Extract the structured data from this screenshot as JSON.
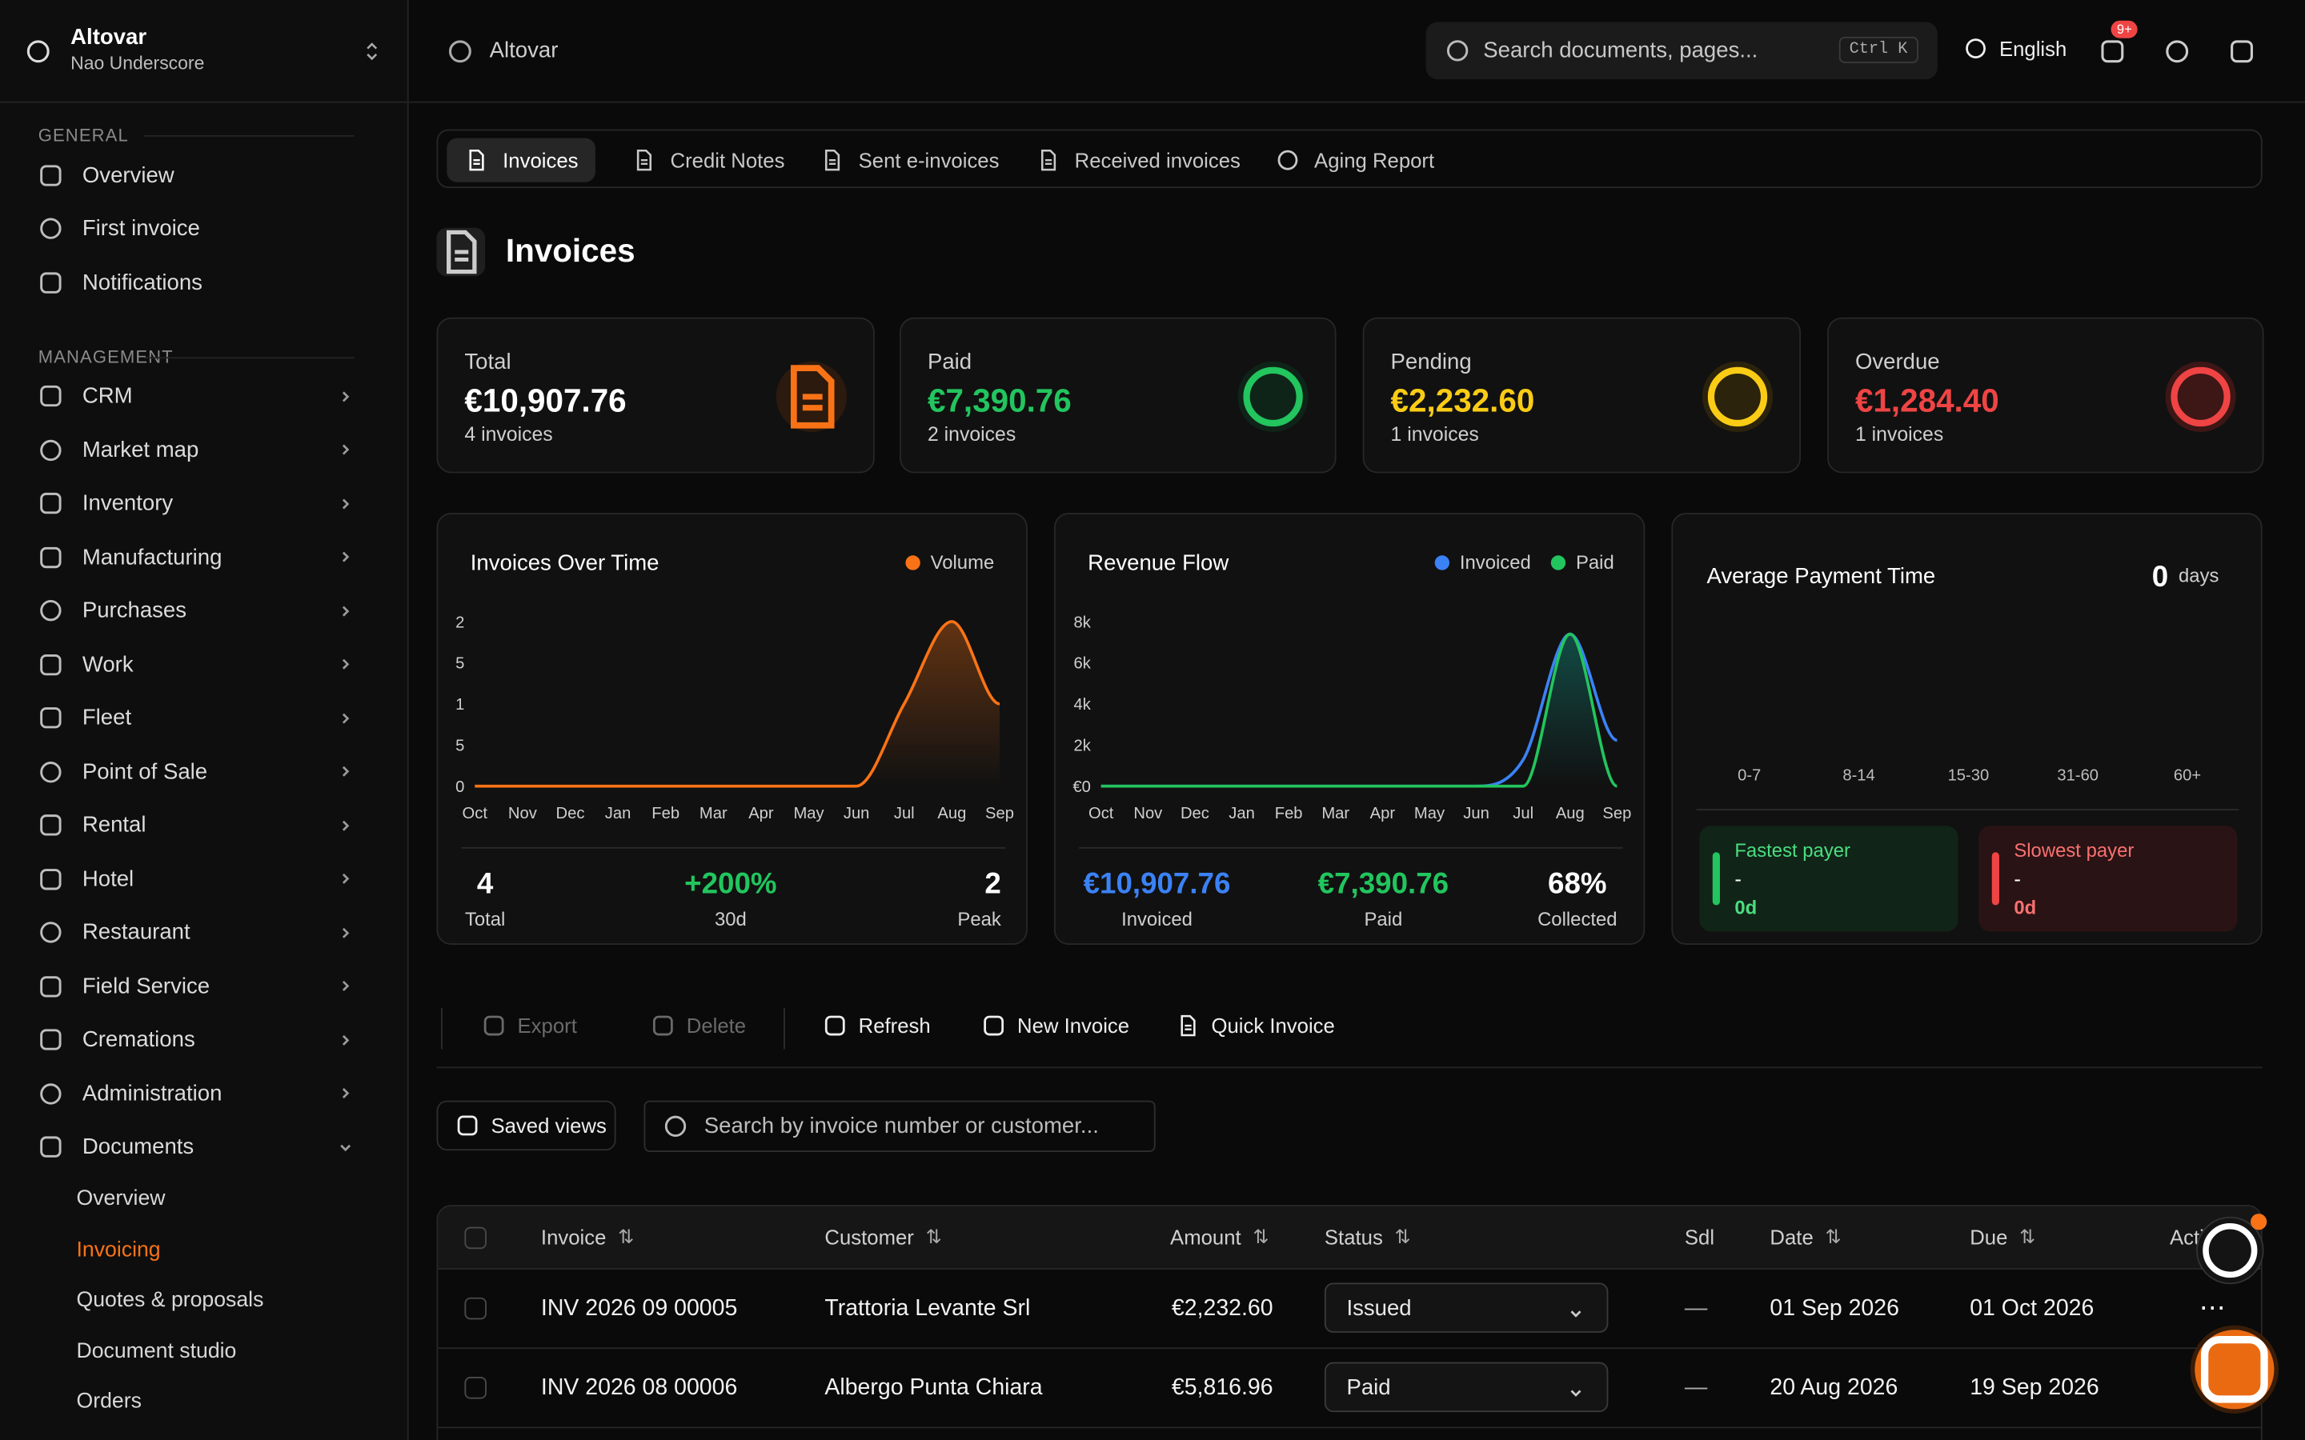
{
  "sidebar": {
    "org": "Altovar",
    "user": "Nao Underscore",
    "sections": [
      {
        "title": "GENERAL",
        "items": [
          "Overview",
          "First invoice",
          "Notifications"
        ]
      },
      {
        "title": "MANAGEMENT",
        "items": [
          "CRM",
          "Market map",
          "Inventory",
          "Manufacturing",
          "Purchases",
          "Work",
          "Fleet",
          "Point of Sale",
          "Rental",
          "Hotel",
          "Restaurant",
          "Field Service",
          "Cremations",
          "Administration",
          "Documents"
        ]
      }
    ],
    "sub_items": [
      "Overview",
      "Invoicing",
      "Quotes & proposals",
      "Document studio",
      "Orders"
    ]
  },
  "topbar": {
    "breadcrumb": "Altovar",
    "search": "Search documents, pages...",
    "shortcut": "Ctrl K",
    "language": "English",
    "badge": "9+"
  },
  "tabs": [
    "Invoices",
    "Credit Notes",
    "Sent e-invoices",
    "Received invoices",
    "Aging Report"
  ],
  "page_title": "Invoices",
  "kpis": [
    {
      "label": "Total",
      "value": "€10,907.76",
      "sub": "4 invoices"
    },
    {
      "label": "Paid",
      "value": "€7,390.76",
      "sub": "2 invoices"
    },
    {
      "label": "Pending",
      "value": "€2,232.60",
      "sub": "1 invoices"
    },
    {
      "label": "Overdue",
      "value": "€1,284.40",
      "sub": "1 invoices"
    }
  ],
  "chart_data": [
    {
      "type": "line",
      "title": "Invoices Over Time",
      "categories": [
        "Oct",
        "Nov",
        "Dec",
        "Jan",
        "Feb",
        "Mar",
        "Apr",
        "May",
        "Jun",
        "Jul",
        "Aug",
        "Sep"
      ],
      "series": [
        {
          "name": "Volume",
          "color": "#f97316",
          "values": [
            0,
            0,
            0,
            0,
            0,
            0,
            0,
            0,
            0,
            1,
            2,
            1
          ]
        }
      ],
      "ylim": [
        0,
        2
      ],
      "yticks": [
        0,
        {
          "value": 0.5,
          "label": "5"
        },
        1,
        {
          "value": 1.5,
          "label": "5"
        },
        2
      ],
      "stats": [
        {
          "value": "4",
          "label": "Total"
        },
        {
          "value": "+200%",
          "label": "30d"
        },
        {
          "value": "2",
          "label": "Peak"
        }
      ]
    },
    {
      "type": "line",
      "title": "Revenue Flow",
      "categories": [
        "Oct",
        "Nov",
        "Dec",
        "Jan",
        "Feb",
        "Mar",
        "Apr",
        "May",
        "Jun",
        "Jul",
        "Aug",
        "Sep"
      ],
      "series": [
        {
          "name": "Invoiced",
          "color": "#3b82f6",
          "values": [
            0,
            0,
            0,
            0,
            0,
            0,
            0,
            0,
            0,
            1284.4,
            7390.76,
            2232.6
          ]
        },
        {
          "name": "Paid",
          "color": "#22c55e",
          "values": [
            0,
            0,
            0,
            0,
            0,
            0,
            0,
            0,
            0,
            0,
            7390.76,
            0
          ]
        }
      ],
      "ylim": [
        0,
        8000
      ],
      "yticks": [
        {
          "value": 0,
          "label": "€0"
        },
        {
          "value": 2000,
          "label": "2k"
        },
        {
          "value": 4000,
          "label": "4k"
        },
        {
          "value": 6000,
          "label": "6k"
        },
        {
          "value": 8000,
          "label": "8k"
        }
      ],
      "stats": [
        {
          "value": "€10,907.76",
          "label": "Invoiced"
        },
        {
          "value": "€7,390.76",
          "label": "Paid"
        },
        {
          "value": "68%",
          "label": "Collected"
        }
      ]
    },
    {
      "type": "bar",
      "title": "Average Payment Time",
      "metric": 0,
      "metric_unit": "days",
      "categories": [
        "0-7",
        "8-14",
        "15-30",
        "31-60",
        "60+"
      ],
      "fastest": {
        "label": "Fastest payer",
        "name": "-",
        "days": "0d"
      },
      "slowest": {
        "label": "Slowest payer",
        "name": "-",
        "days": "0d"
      }
    }
  ],
  "toolbar": [
    "Export",
    "Delete",
    "Refresh",
    "New Invoice",
    "Quick Invoice"
  ],
  "table": {
    "saved_views": "Saved views",
    "search": "Search by invoice number or customer...",
    "columns": [
      "Invoice",
      "Customer",
      "Amount",
      "Status",
      "Sdl",
      "Date",
      "Due",
      "Actions"
    ],
    "rows": [
      [
        "INV 2026 09 00005",
        "Trattoria Levante Srl",
        "€2,232.60",
        "Issued",
        "—",
        "01 Sep 2026",
        "01 Oct 2026"
      ],
      [
        "INV 2026 08 00006",
        "Albergo Punta Chiara",
        "€5,816.96",
        "Paid",
        "—",
        "20 Aug 2026",
        "19 Sep 2026"
      ]
    ]
  }
}
